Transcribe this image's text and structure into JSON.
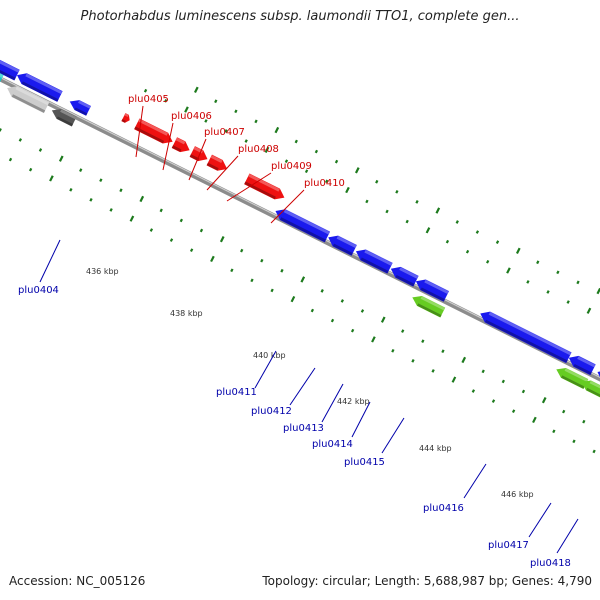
{
  "title": "Photorhabdus luminescens subsp. laumondii TTO1, complete gen...",
  "footer": {
    "accession": "Accession: NC_005126",
    "summary": "Topology: circular; Length: 5,688,987 bp; Genes: 4,790"
  },
  "colors": {
    "backbone": "#8c8c8c",
    "forward_gene": "#ee1111",
    "reverse_gene": "#1a1aee",
    "dot_track": "#1d7a1d",
    "label_forward": "#cc0000",
    "label_reverse": "#0000aa",
    "cyan_gene": "#11cccc",
    "grey_gene": "#cccccc",
    "dark_grey_gene": "#555555",
    "green_gene": "#66cc22"
  },
  "axis_ticks": [
    "436 kbp",
    "438 kbp",
    "440 kbp",
    "442 kbp",
    "444 kbp",
    "446 kbp"
  ],
  "genes": [
    {
      "label": "plu0404",
      "strand": "reverse"
    },
    {
      "label": "plu0405",
      "strand": "forward"
    },
    {
      "label": "plu0406",
      "strand": "forward"
    },
    {
      "label": "plu0407",
      "strand": "forward"
    },
    {
      "label": "plu0408",
      "strand": "forward"
    },
    {
      "label": "plu0409",
      "strand": "forward"
    },
    {
      "label": "plu0410",
      "strand": "forward"
    },
    {
      "label": "plu0411",
      "strand": "reverse"
    },
    {
      "label": "plu0412",
      "strand": "reverse"
    },
    {
      "label": "plu0413",
      "strand": "reverse"
    },
    {
      "label": "plu0414",
      "strand": "reverse"
    },
    {
      "label": "plu0415",
      "strand": "reverse"
    },
    {
      "label": "plu0416",
      "strand": "reverse"
    },
    {
      "label": "plu0417",
      "strand": "reverse"
    },
    {
      "label": "plu0418",
      "strand": "reverse"
    }
  ]
}
